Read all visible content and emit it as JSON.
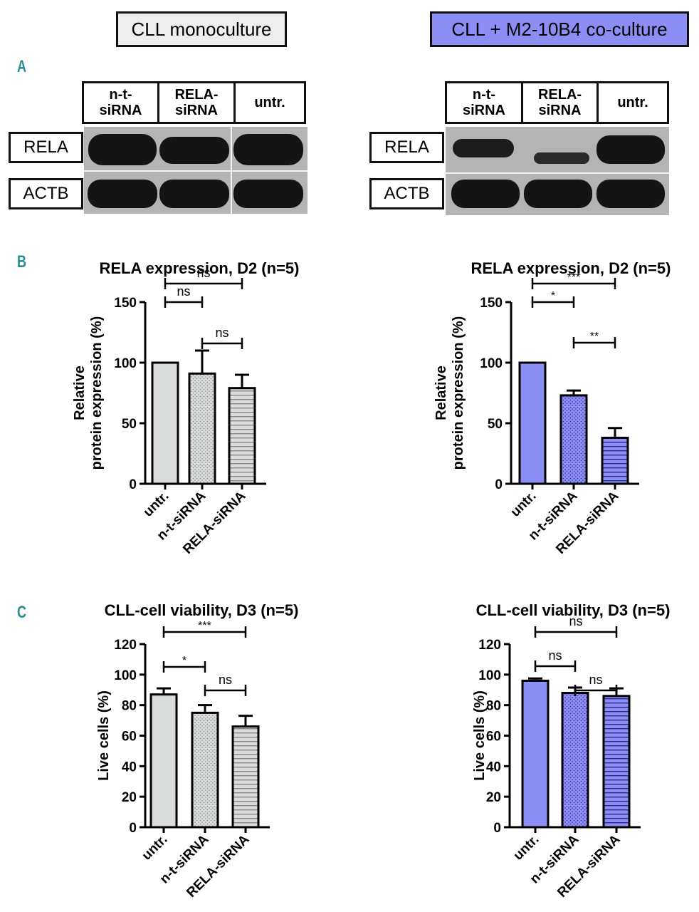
{
  "headers": {
    "left": "CLL monoculture",
    "right": "CLL + M2-10B4 co-culture",
    "left_bg": "#eeeeee",
    "right_bg": "#8d8ef5"
  },
  "panels": {
    "a": "A",
    "b": "B",
    "c": "C"
  },
  "panel_color": "#2a8f8f",
  "blots": {
    "lanes": [
      {
        "line1": "n-t-",
        "line2": "siRNA"
      },
      {
        "line1": "RELA-",
        "line2": "siRNA"
      },
      {
        "line1": "untr.",
        "line2": ""
      }
    ],
    "rows": [
      "RELA",
      "ACTB"
    ]
  },
  "colors": {
    "mono_fill": "#d9dcdb",
    "co_fill": "#8d8ef5",
    "mono_pattern": "#888888",
    "co_pattern": "#2a2a8a"
  },
  "chart_data": [
    {
      "id": "B-mono",
      "type": "bar",
      "title": "RELA expression, D2 (n=5)",
      "ylabel_line1": "Relative",
      "ylabel_line2": "protein expression (%)",
      "categories": [
        "untr.",
        "n-t-siRNA",
        "RELA-siRNA"
      ],
      "values": [
        100,
        91,
        79
      ],
      "errors": [
        0,
        19,
        11
      ],
      "ylim": [
        0,
        150
      ],
      "yticks": [
        "0",
        "50",
        "100",
        "150"
      ],
      "brackets": [
        {
          "from": 0,
          "to": 2,
          "label": "ns"
        },
        {
          "from": 0,
          "to": 1,
          "label": "ns"
        },
        {
          "from": 1,
          "to": 2,
          "label": "ns"
        }
      ]
    },
    {
      "id": "B-co",
      "type": "bar",
      "title": "RELA expression, D2 (n=5)",
      "ylabel_line1": "Relative",
      "ylabel_line2": "protein expression (%)",
      "categories": [
        "untr.",
        "n-t-siRNA",
        "RELA-siRNA"
      ],
      "values": [
        100,
        73,
        38
      ],
      "errors": [
        0,
        4,
        8
      ],
      "ylim": [
        0,
        150
      ],
      "yticks": [
        "0",
        "50",
        "100",
        "150"
      ],
      "brackets": [
        {
          "from": 0,
          "to": 2,
          "label": "***"
        },
        {
          "from": 0,
          "to": 1,
          "label": "*"
        },
        {
          "from": 1,
          "to": 2,
          "label": "**"
        }
      ]
    },
    {
      "id": "C-mono",
      "type": "bar",
      "title": "CLL-cell viability, D3 (n=5)",
      "ylabel_line1": "",
      "ylabel_line2": "Live cells (%)",
      "categories": [
        "untr.",
        "n-t-siRNA",
        "RELA-siRNA"
      ],
      "values": [
        87,
        75,
        66
      ],
      "errors": [
        4,
        5,
        7
      ],
      "ylim": [
        0,
        120
      ],
      "yticks": [
        "0",
        "20",
        "40",
        "60",
        "80",
        "100",
        "120"
      ],
      "brackets": [
        {
          "from": 0,
          "to": 2,
          "label": "***"
        },
        {
          "from": 0,
          "to": 1,
          "label": "*"
        },
        {
          "from": 1,
          "to": 2,
          "label": "ns"
        }
      ]
    },
    {
      "id": "C-co",
      "type": "bar",
      "title": "CLL-cell viability, D3 (n=5)",
      "ylabel_line1": "",
      "ylabel_line2": "Live cells (%)",
      "categories": [
        "untr.",
        "n-t-siRNA",
        "RELA-siRNA"
      ],
      "values": [
        96,
        88,
        86
      ],
      "errors": [
        1.5,
        3.5,
        5
      ],
      "ylim": [
        0,
        120
      ],
      "yticks": [
        "0",
        "20",
        "40",
        "60",
        "80",
        "100",
        "120"
      ],
      "brackets": [
        {
          "from": 0,
          "to": 2,
          "label": "ns"
        },
        {
          "from": 0,
          "to": 1,
          "label": "ns"
        },
        {
          "from": 1,
          "to": 2,
          "label": "ns"
        }
      ]
    }
  ]
}
